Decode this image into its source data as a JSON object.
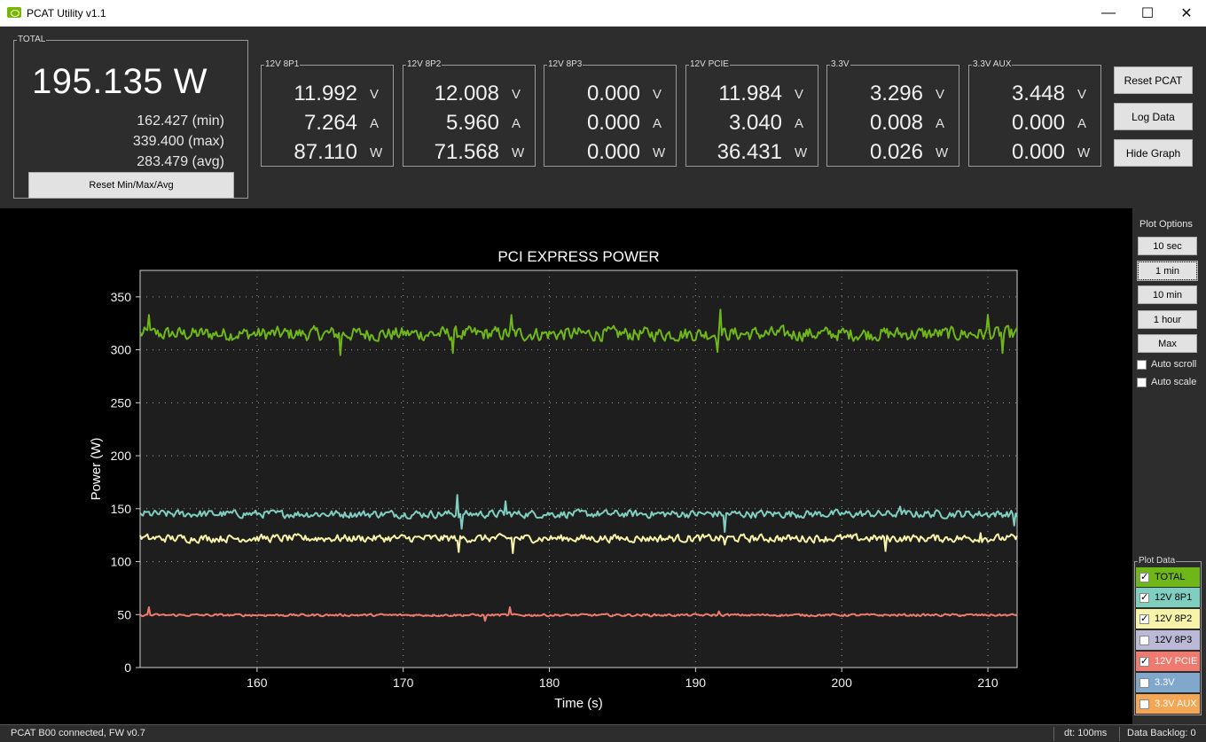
{
  "window": {
    "title": "PCAT Utility v1.1",
    "min_glyph": "—",
    "max_glyph": "☐",
    "close_glyph": "✕",
    "app_icon": "nvidia-logo-icon"
  },
  "total": {
    "legend": "TOTAL",
    "value": "195.135 W",
    "min": "162.427 (min)",
    "max": "339.400 (max)",
    "avg": "283.479 (avg)",
    "reset_label": "Reset Min/Max/Avg"
  },
  "rails": [
    {
      "name": "12V 8P1",
      "volts": "11.992",
      "amps": "7.264",
      "watts": "87.110"
    },
    {
      "name": "12V 8P2",
      "volts": "12.008",
      "amps": "5.960",
      "watts": "71.568"
    },
    {
      "name": "12V 8P3",
      "volts": "0.000",
      "amps": "0.000",
      "watts": "0.000"
    },
    {
      "name": "12V PCIE",
      "volts": "11.984",
      "amps": "3.040",
      "watts": "36.431"
    },
    {
      "name": "3.3V",
      "volts": "3.296",
      "amps": "0.008",
      "watts": "0.026"
    },
    {
      "name": "3.3V AUX",
      "volts": "3.448",
      "amps": "0.000",
      "watts": "0.000"
    }
  ],
  "units": {
    "v": "V",
    "a": "A",
    "w": "W"
  },
  "side_buttons": {
    "reset_pcat": "Reset PCAT",
    "log_data": "Log Data",
    "hide_graph": "Hide Graph"
  },
  "plot_options": {
    "label": "Plot Options",
    "buttons": [
      "10 sec",
      "1 min",
      "10 min",
      "1 hour",
      "Max"
    ],
    "selected": "1 min",
    "auto_scroll": "Auto scroll",
    "auto_scroll_checked": false,
    "auto_scale": "Auto scale",
    "auto_scale_checked": false
  },
  "plot_data": {
    "label": "Plot Data",
    "items": [
      {
        "label": "TOTAL",
        "checked": true,
        "color": "#6fb718"
      },
      {
        "label": "12V 8P1",
        "checked": true,
        "color": "#7fcfc0"
      },
      {
        "label": "12V 8P2",
        "checked": true,
        "color": "#f7f3a8"
      },
      {
        "label": "12V 8P3",
        "checked": false,
        "color": "#bcb8d8"
      },
      {
        "label": "12V PCIE",
        "checked": true,
        "color": "#f07a6e"
      },
      {
        "label": "3.3V",
        "checked": false,
        "color": "#7fa8cc"
      },
      {
        "label": "3.3V AUX",
        "checked": false,
        "color": "#f3a653"
      }
    ]
  },
  "status": {
    "connection": "PCAT B00 connected, FW v0.7",
    "dt": "dt: 100ms",
    "backlog": "Data Backlog: 0"
  },
  "chart_data": {
    "type": "line",
    "title": "PCI EXPRESS POWER",
    "xlabel": "Time (s)",
    "ylabel": "Power (W)",
    "xlim": [
      152,
      212
    ],
    "ylim": [
      0,
      375
    ],
    "xticks": [
      160,
      170,
      180,
      190,
      200,
      210
    ],
    "yticks": [
      0,
      50,
      100,
      150,
      200,
      250,
      300,
      350
    ],
    "grid": true,
    "background": "#1e1e1e",
    "series": [
      {
        "name": "TOTAL",
        "color": "#6fb718",
        "mean": 315,
        "noise": 9,
        "spikes": [
          [
            152.6,
            333
          ],
          [
            165.7,
            295
          ],
          [
            173.4,
            297
          ],
          [
            177.4,
            333
          ],
          [
            191.7,
            338
          ],
          [
            191.5,
            298
          ],
          [
            210.0,
            333
          ],
          [
            211.0,
            297
          ]
        ]
      },
      {
        "name": "12V 8P1",
        "color": "#7fcfc0",
        "mean": 145,
        "noise": 5,
        "spikes": [
          [
            173.7,
            163
          ],
          [
            174.0,
            131
          ],
          [
            177.0,
            157
          ],
          [
            192.0,
            128
          ],
          [
            204.0,
            152
          ],
          [
            211.8,
            134
          ]
        ]
      },
      {
        "name": "12V 8P2",
        "color": "#f7f3a8",
        "mean": 122,
        "noise": 5,
        "spikes": [
          [
            173.8,
            109
          ],
          [
            177.5,
            108
          ],
          [
            192.0,
            116
          ],
          [
            203.0,
            110
          ],
          [
            209.5,
            127
          ]
        ]
      },
      {
        "name": "12V PCIE",
        "color": "#f07a6e",
        "mean": 49.5,
        "noise": 1.5,
        "spikes": [
          [
            152.6,
            57
          ],
          [
            177.3,
            57
          ],
          [
            175.6,
            44
          ],
          [
            191.6,
            53
          ]
        ]
      }
    ]
  }
}
